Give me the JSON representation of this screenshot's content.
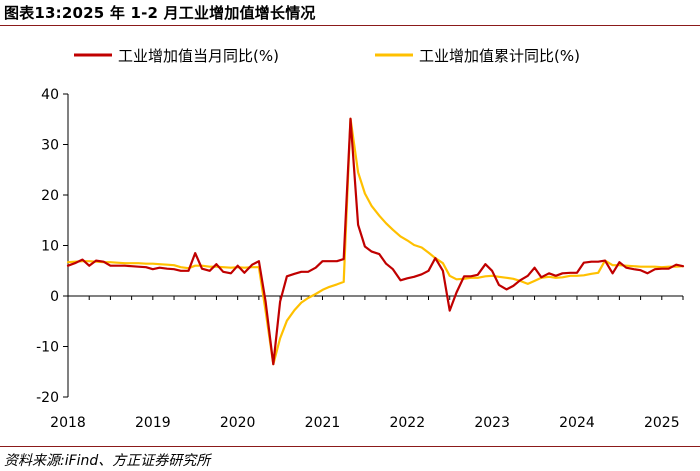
{
  "header": {
    "title": "图表13:2025 年 1-2 月工业增加值增长情况"
  },
  "footer": {
    "source": "资料来源:iFind、方正证券研究所"
  },
  "colors": {
    "monthly": "#c00000",
    "cumulative": "#ffc000",
    "rule": "#8b1a1a",
    "axis": "#000000"
  },
  "chart_data": {
    "type": "line",
    "title": "图表13:2025 年 1-2 月工业增加值增长情况",
    "xlabel": "",
    "ylabel": "",
    "ylim": [
      -20,
      40
    ],
    "yticks": [
      -20,
      -10,
      0,
      10,
      20,
      30,
      40
    ],
    "xticks": [
      "2018",
      "2019",
      "2020",
      "2021",
      "2022",
      "2023",
      "2024",
      "2025"
    ],
    "grid": false,
    "legend": "top",
    "x_format": "year.fraction",
    "series": [
      {
        "name": "工业增加值当月同比(%)",
        "color": "#c00000",
        "points": [
          [
            2018.0,
            6.0
          ],
          [
            2018.08,
            6.5
          ],
          [
            2018.17,
            7.2
          ],
          [
            2018.25,
            6.0
          ],
          [
            2018.33,
            7.0
          ],
          [
            2018.42,
            6.8
          ],
          [
            2018.5,
            6.0
          ],
          [
            2018.58,
            6.0
          ],
          [
            2018.67,
            6.0
          ],
          [
            2018.75,
            5.9
          ],
          [
            2018.83,
            5.8
          ],
          [
            2018.92,
            5.7
          ],
          [
            2019.0,
            5.3
          ],
          [
            2019.08,
            5.6
          ],
          [
            2019.17,
            5.4
          ],
          [
            2019.25,
            5.3
          ],
          [
            2019.33,
            5.0
          ],
          [
            2019.42,
            5.0
          ],
          [
            2019.5,
            8.5
          ],
          [
            2019.58,
            5.4
          ],
          [
            2019.67,
            5.0
          ],
          [
            2019.75,
            6.3
          ],
          [
            2019.83,
            4.8
          ],
          [
            2019.92,
            4.5
          ],
          [
            2020.0,
            6.0
          ],
          [
            2020.08,
            4.6
          ],
          [
            2020.17,
            6.2
          ],
          [
            2020.25,
            6.9
          ],
          [
            2020.33,
            -1.1
          ],
          [
            2020.42,
            -13.5
          ],
          [
            2020.5,
            -1.1
          ],
          [
            2020.58,
            3.9
          ],
          [
            2020.67,
            4.4
          ],
          [
            2020.75,
            4.8
          ],
          [
            2020.83,
            4.8
          ],
          [
            2020.92,
            5.6
          ],
          [
            2021.0,
            6.9
          ],
          [
            2021.08,
            6.9
          ],
          [
            2021.17,
            6.9
          ],
          [
            2021.25,
            7.3
          ],
          [
            2021.33,
            35.1
          ],
          [
            2021.42,
            14.1
          ],
          [
            2021.5,
            9.8
          ],
          [
            2021.58,
            8.8
          ],
          [
            2021.67,
            8.3
          ],
          [
            2021.75,
            6.4
          ],
          [
            2021.83,
            5.3
          ],
          [
            2021.92,
            3.1
          ],
          [
            2022.0,
            3.5
          ],
          [
            2022.08,
            3.8
          ],
          [
            2022.17,
            4.3
          ],
          [
            2022.25,
            5.0
          ],
          [
            2022.33,
            7.5
          ],
          [
            2022.42,
            5.0
          ],
          [
            2022.5,
            -2.9
          ],
          [
            2022.58,
            0.7
          ],
          [
            2022.67,
            3.9
          ],
          [
            2022.75,
            3.9
          ],
          [
            2022.83,
            4.2
          ],
          [
            2022.92,
            6.3
          ],
          [
            2023.0,
            5.0
          ],
          [
            2023.08,
            2.2
          ],
          [
            2023.17,
            1.3
          ],
          [
            2023.25,
            2.0
          ],
          [
            2023.33,
            3.1
          ],
          [
            2023.42,
            4.0
          ],
          [
            2023.5,
            5.6
          ],
          [
            2023.58,
            3.7
          ],
          [
            2023.67,
            4.5
          ],
          [
            2023.75,
            4.0
          ],
          [
            2023.83,
            4.5
          ],
          [
            2023.92,
            4.6
          ],
          [
            2024.0,
            4.6
          ],
          [
            2024.08,
            6.6
          ],
          [
            2024.17,
            6.8
          ],
          [
            2024.25,
            6.8
          ],
          [
            2024.33,
            7.0
          ],
          [
            2024.42,
            4.5
          ],
          [
            2024.5,
            6.7
          ],
          [
            2024.58,
            5.6
          ],
          [
            2024.67,
            5.3
          ],
          [
            2024.75,
            5.1
          ],
          [
            2024.83,
            4.5
          ],
          [
            2024.92,
            5.3
          ],
          [
            2025.0,
            5.4
          ],
          [
            2025.08,
            5.4
          ],
          [
            2025.17,
            6.2
          ],
          [
            2025.25,
            5.9
          ]
        ]
      },
      {
        "name": "工业增加值累计同比(%)",
        "color": "#ffc000",
        "points": [
          [
            2018.0,
            6.7
          ],
          [
            2018.08,
            6.8
          ],
          [
            2018.17,
            6.9
          ],
          [
            2018.25,
            6.9
          ],
          [
            2018.33,
            6.8
          ],
          [
            2018.42,
            6.7
          ],
          [
            2018.5,
            6.7
          ],
          [
            2018.58,
            6.6
          ],
          [
            2018.67,
            6.5
          ],
          [
            2018.75,
            6.5
          ],
          [
            2018.83,
            6.5
          ],
          [
            2018.92,
            6.4
          ],
          [
            2019.0,
            6.4
          ],
          [
            2019.08,
            6.3
          ],
          [
            2019.17,
            6.2
          ],
          [
            2019.25,
            6.1
          ],
          [
            2019.33,
            5.7
          ],
          [
            2019.42,
            5.5
          ],
          [
            2019.5,
            6.0
          ],
          [
            2019.58,
            6.0
          ],
          [
            2019.67,
            5.8
          ],
          [
            2019.75,
            5.8
          ],
          [
            2019.83,
            5.7
          ],
          [
            2019.92,
            5.6
          ],
          [
            2020.0,
            5.7
          ],
          [
            2020.08,
            5.6
          ],
          [
            2020.17,
            5.7
          ],
          [
            2020.25,
            5.7
          ],
          [
            2020.33,
            -3.0
          ],
          [
            2020.42,
            -13.5
          ],
          [
            2020.5,
            -8.4
          ],
          [
            2020.58,
            -4.9
          ],
          [
            2020.67,
            -2.8
          ],
          [
            2020.75,
            -1.3
          ],
          [
            2020.83,
            -0.4
          ],
          [
            2020.92,
            0.4
          ],
          [
            2021.0,
            1.2
          ],
          [
            2021.08,
            1.8
          ],
          [
            2021.17,
            2.3
          ],
          [
            2021.25,
            2.8
          ],
          [
            2021.33,
            35.1
          ],
          [
            2021.42,
            24.5
          ],
          [
            2021.5,
            20.3
          ],
          [
            2021.58,
            17.8
          ],
          [
            2021.67,
            15.9
          ],
          [
            2021.75,
            14.4
          ],
          [
            2021.83,
            13.1
          ],
          [
            2021.92,
            11.8
          ],
          [
            2022.0,
            11.0
          ],
          [
            2022.08,
            10.1
          ],
          [
            2022.17,
            9.6
          ],
          [
            2022.25,
            8.6
          ],
          [
            2022.33,
            7.5
          ],
          [
            2022.42,
            6.5
          ],
          [
            2022.5,
            4.0
          ],
          [
            2022.58,
            3.3
          ],
          [
            2022.67,
            3.4
          ],
          [
            2022.75,
            3.6
          ],
          [
            2022.83,
            3.6
          ],
          [
            2022.92,
            3.9
          ],
          [
            2023.0,
            4.0
          ],
          [
            2023.08,
            3.8
          ],
          [
            2023.17,
            3.6
          ],
          [
            2023.25,
            3.4
          ],
          [
            2023.33,
            3.0
          ],
          [
            2023.42,
            2.4
          ],
          [
            2023.5,
            3.0
          ],
          [
            2023.58,
            3.6
          ],
          [
            2023.67,
            3.8
          ],
          [
            2023.75,
            3.6
          ],
          [
            2023.83,
            3.7
          ],
          [
            2023.92,
            4.0
          ],
          [
            2024.0,
            4.0
          ],
          [
            2024.08,
            4.1
          ],
          [
            2024.17,
            4.4
          ],
          [
            2024.25,
            4.6
          ],
          [
            2024.33,
            7.0
          ],
          [
            2024.42,
            6.1
          ],
          [
            2024.5,
            6.1
          ],
          [
            2024.58,
            6.0
          ],
          [
            2024.67,
            5.9
          ],
          [
            2024.75,
            5.8
          ],
          [
            2024.83,
            5.8
          ],
          [
            2024.92,
            5.8
          ],
          [
            2025.0,
            5.7
          ],
          [
            2025.08,
            5.8
          ],
          [
            2025.17,
            5.8
          ],
          [
            2025.25,
            5.9
          ]
        ]
      }
    ]
  }
}
